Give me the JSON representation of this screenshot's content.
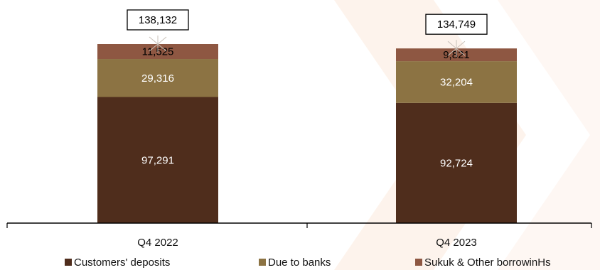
{
  "chart_data": {
    "type": "bar",
    "stacked": true,
    "categories": [
      "Q4 2022",
      "Q4 2023"
    ],
    "series": [
      {
        "name": "Customers' deposits",
        "values": [
          97291,
          92724
        ],
        "labels": [
          "97,291",
          "92,724"
        ],
        "color": "#4f2d1c",
        "label_color": "#ffffff"
      },
      {
        "name": "Due to banks",
        "values": [
          29316,
          32204
        ],
        "labels": [
          "29,316",
          "32,204"
        ],
        "color": "#8c7343",
        "label_color": "#ffffff"
      },
      {
        "name": "Sukuk & Other borrowinHs",
        "values": [
          11525,
          9821
        ],
        "labels": [
          "11,525",
          "9,821"
        ],
        "color": "#8e5742",
        "label_color": "#000000"
      }
    ],
    "totals": [
      138132,
      134749
    ],
    "total_labels": [
      "138,132",
      "134,749"
    ],
    "ylim": [
      0,
      154000
    ],
    "grid": false,
    "legend_position": "bottom",
    "watermark_color": "#fbe9dc"
  }
}
